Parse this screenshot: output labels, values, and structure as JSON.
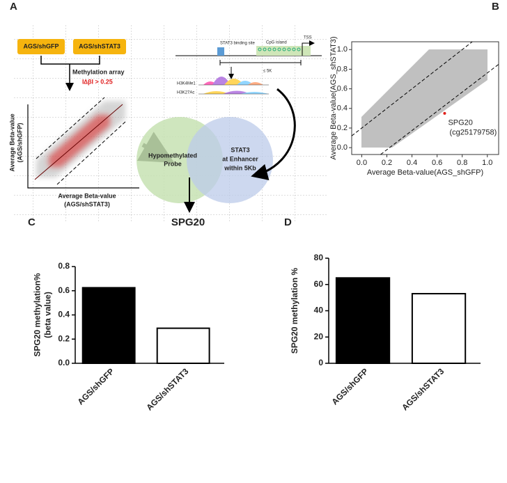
{
  "panels": [
    "A",
    "B",
    "C",
    "D"
  ],
  "diagram": {
    "boxes": [
      "AGS/shGFP",
      "AGS/shSTAT3"
    ],
    "method": "Methylation array",
    "threshold": "I∆βI > 0.25",
    "mini_plot": {
      "ylabel": [
        "Average Beta-value",
        "(AGS/shGFP)"
      ],
      "xlabel": [
        "Average Beta-value",
        "(AGS/shSTAT3)"
      ]
    },
    "gene": {
      "binding_site": "STAT3 binding site",
      "cpg": "CpG island",
      "tss": "TSS",
      "distance": "≤ 5K",
      "tracks": [
        "H3K4Me1",
        "H3K27Ac"
      ]
    },
    "venn": {
      "left": [
        "Hypomethylated",
        "Probe"
      ],
      "right": [
        "STAT3",
        "at Enhancer",
        "within 5Kb"
      ]
    },
    "result": "SPG20"
  },
  "chart_data": [
    {
      "type": "scatter",
      "xlabel": "Average Beta-value(AGS_shGFP)",
      "ylabel": "Average Beta-value(AGS_shSTAT3)",
      "xlim": [
        -0.08,
        1.09
      ],
      "ylim": [
        -0.07,
        1.08
      ],
      "xticks": [
        {
          "value": 0,
          "label": "0.0"
        },
        0.2,
        0.4,
        0.6,
        0.8,
        {
          "value": 1,
          "label": "1.0"
        }
      ],
      "yticks": [
        {
          "value": 0,
          "label": "0.0"
        },
        0.2,
        0.4,
        0.6,
        0.8,
        {
          "value": 1,
          "label": "1.0"
        }
      ],
      "points": {
        "x": [
          0.66
        ],
        "y": [
          0.35
        ],
        "color": "#e0201b"
      },
      "annotations": [
        "SPG20",
        "(cg25179758)"
      ],
      "reference_lines": [
        {
          "x": [
            -0.08,
            0.88
          ],
          "y": [
            0.12,
            1.08
          ]
        },
        {
          "x": [
            0.15,
            1.09
          ],
          "y": [
            -0.07,
            0.85
          ]
        }
      ]
    },
    {
      "type": "bar",
      "ylabel": [
        "SPG20 methylation%",
        "(beta value)"
      ],
      "categories": [
        "AGS/shGFP",
        "AGS/shSTAT3"
      ],
      "values": [
        0.625,
        0.29
      ],
      "colors": [
        "#000000",
        "#ffffff"
      ],
      "edgecolor": "#000000",
      "ylim": [
        0,
        0.8
      ],
      "yticks": [
        {
          "value": 0,
          "label": "0.0"
        },
        0.2,
        0.4,
        0.6,
        0.8
      ]
    },
    {
      "type": "bar",
      "ylabel": [
        "SPG20 methylation %"
      ],
      "categories": [
        "AGS/shGFP",
        "AGS/shSTAT3"
      ],
      "values": [
        65,
        53
      ],
      "colors": [
        "#000000",
        "#ffffff"
      ],
      "edgecolor": "#000000",
      "ylim": [
        0,
        80
      ],
      "yticks": [
        0,
        20,
        40,
        60,
        80
      ]
    }
  ]
}
